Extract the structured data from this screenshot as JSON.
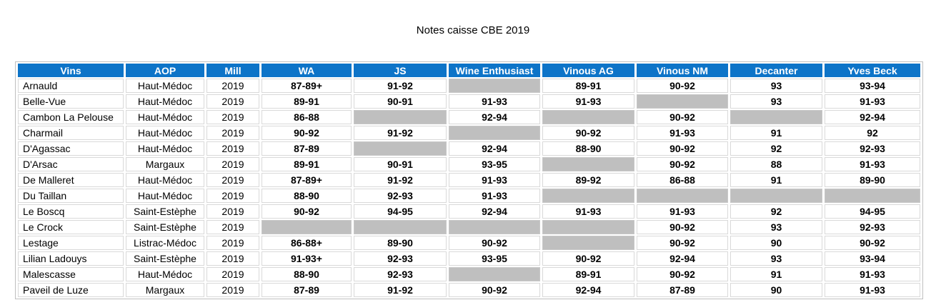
{
  "title": "Notes caisse CBE 2019",
  "colors": {
    "header_bg": "#0d74c8",
    "header_text": "#ffffff",
    "empty_cell_fill": "#bfbfbf",
    "grid_line": "#d9d9d9",
    "outer_border": "#bfbfbf"
  },
  "table": {
    "columns": [
      {
        "key": "vins",
        "label": "Vins"
      },
      {
        "key": "aop",
        "label": "AOP"
      },
      {
        "key": "mill",
        "label": "Mill"
      },
      {
        "key": "wa",
        "label": "WA"
      },
      {
        "key": "js",
        "label": "JS"
      },
      {
        "key": "we",
        "label": "Wine Enthusiast"
      },
      {
        "key": "vinous_ag",
        "label": "Vinous AG"
      },
      {
        "key": "vinous_nm",
        "label": "Vinous NM"
      },
      {
        "key": "decanter",
        "label": "Decanter"
      },
      {
        "key": "yves_beck",
        "label": "Yves Beck"
      }
    ],
    "rows": [
      {
        "vins": "Arnauld",
        "aop": "Haut-Médoc",
        "mill": "2019",
        "wa": "87-89+",
        "js": "91-92",
        "we": null,
        "vinous_ag": "89-91",
        "vinous_nm": "90-92",
        "decanter": "93",
        "yves_beck": "93-94"
      },
      {
        "vins": "Belle-Vue",
        "aop": "Haut-Médoc",
        "mill": "2019",
        "wa": "89-91",
        "js": "90-91",
        "we": "91-93",
        "vinous_ag": "91-93",
        "vinous_nm": null,
        "decanter": "93",
        "yves_beck": "91-93"
      },
      {
        "vins": "Cambon La Pelouse",
        "aop": "Haut-Médoc",
        "mill": "2019",
        "wa": "86-88",
        "js": null,
        "we": "92-94",
        "vinous_ag": null,
        "vinous_nm": "90-92",
        "decanter": null,
        "yves_beck": "92-94"
      },
      {
        "vins": "Charmail",
        "aop": "Haut-Médoc",
        "mill": "2019",
        "wa": "90-92",
        "js": "91-92",
        "we": null,
        "vinous_ag": "90-92",
        "vinous_nm": "91-93",
        "decanter": "91",
        "yves_beck": "92"
      },
      {
        "vins": "D'Agassac",
        "aop": "Haut-Médoc",
        "mill": "2019",
        "wa": "87-89",
        "js": null,
        "we": "92-94",
        "vinous_ag": "88-90",
        "vinous_nm": "90-92",
        "decanter": "92",
        "yves_beck": "92-93"
      },
      {
        "vins": "D'Arsac",
        "aop": "Margaux",
        "mill": "2019",
        "wa": "89-91",
        "js": "90-91",
        "we": "93-95",
        "vinous_ag": null,
        "vinous_nm": "90-92",
        "decanter": "88",
        "yves_beck": "91-93"
      },
      {
        "vins": "De Malleret",
        "aop": "Haut-Médoc",
        "mill": "2019",
        "wa": "87-89+",
        "js": "91-92",
        "we": "91-93",
        "vinous_ag": "89-92",
        "vinous_nm": "86-88",
        "decanter": "91",
        "yves_beck": "89-90"
      },
      {
        "vins": "Du Taillan",
        "aop": "Haut-Médoc",
        "mill": "2019",
        "wa": "88-90",
        "js": "92-93",
        "we": "91-93",
        "vinous_ag": null,
        "vinous_nm": null,
        "decanter": null,
        "yves_beck": null
      },
      {
        "vins": "Le Boscq",
        "aop": "Saint-Estèphe",
        "mill": "2019",
        "wa": "90-92",
        "js": "94-95",
        "we": "92-94",
        "vinous_ag": "91-93",
        "vinous_nm": "91-93",
        "decanter": "92",
        "yves_beck": "94-95"
      },
      {
        "vins": "Le Crock",
        "aop": "Saint-Estèphe",
        "mill": "2019",
        "wa": null,
        "js": null,
        "we": null,
        "vinous_ag": null,
        "vinous_nm": "90-92",
        "decanter": "93",
        "yves_beck": "92-93"
      },
      {
        "vins": "Lestage",
        "aop": "Listrac-Médoc",
        "mill": "2019",
        "wa": "86-88+",
        "js": "89-90",
        "we": "90-92",
        "vinous_ag": null,
        "vinous_nm": "90-92",
        "decanter": "90",
        "yves_beck": "90-92"
      },
      {
        "vins": "Lilian Ladouys",
        "aop": "Saint-Estèphe",
        "mill": "2019",
        "wa": "91-93+",
        "js": "92-93",
        "we": "93-95",
        "vinous_ag": "90-92",
        "vinous_nm": "92-94",
        "decanter": "93",
        "yves_beck": "93-94"
      },
      {
        "vins": "Malescasse",
        "aop": "Haut-Médoc",
        "mill": "2019",
        "wa": "88-90",
        "js": "92-93",
        "we": null,
        "vinous_ag": "89-91",
        "vinous_nm": "90-92",
        "decanter": "91",
        "yves_beck": "91-93"
      },
      {
        "vins": "Paveil de Luze",
        "aop": "Margaux",
        "mill": "2019",
        "wa": "87-89",
        "js": "91-92",
        "we": "90-92",
        "vinous_ag": "92-94",
        "vinous_nm": "87-89",
        "decanter": "90",
        "yves_beck": "91-93"
      }
    ]
  }
}
